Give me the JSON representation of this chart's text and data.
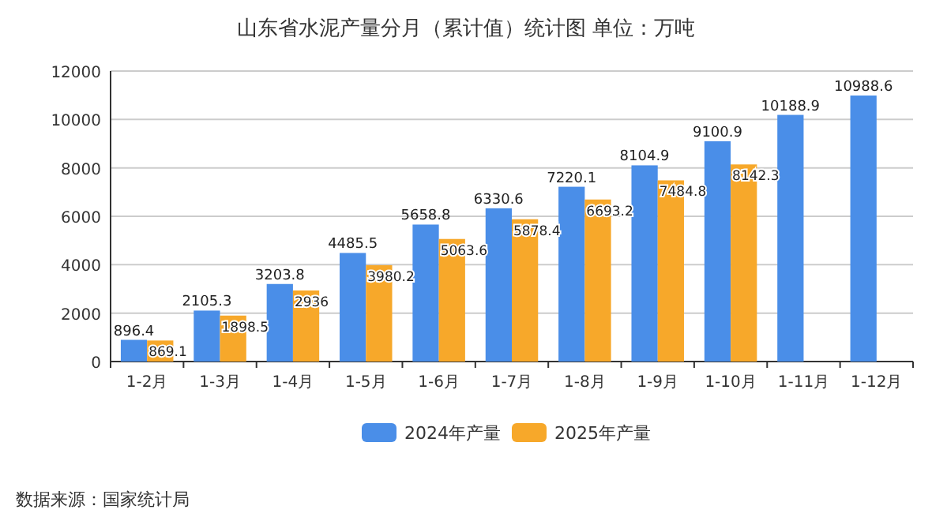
{
  "chart_data": {
    "type": "bar",
    "title": "山东省水泥产量分月（累计值）统计图 单位：万吨",
    "categories": [
      "1-2月",
      "1-3月",
      "1-4月",
      "1-5月",
      "1-6月",
      "1-7月",
      "1-8月",
      "1-9月",
      "1-10月",
      "1-11月",
      "1-12月"
    ],
    "series": [
      {
        "name": "2024年产量",
        "color": "#4a8ee8",
        "values": [
          896.4,
          2105.3,
          3203.8,
          4485.5,
          5658.8,
          6330.6,
          7220.1,
          8104.9,
          9100.9,
          10188.9,
          10988.6
        ]
      },
      {
        "name": "2025年产量",
        "color": "#f7a82a",
        "values": [
          869.1,
          1898.5,
          2936,
          3980.2,
          5063.6,
          5878.4,
          6693.2,
          7484.8,
          8142.3,
          null,
          null
        ]
      }
    ],
    "ylim": [
      0,
      12000
    ],
    "yticks": [
      0,
      2000,
      4000,
      6000,
      8000,
      10000,
      12000
    ],
    "grid": "y",
    "legend": "bottom",
    "data_labels": true,
    "annotations": [
      "数据来源：国家统计局"
    ]
  }
}
